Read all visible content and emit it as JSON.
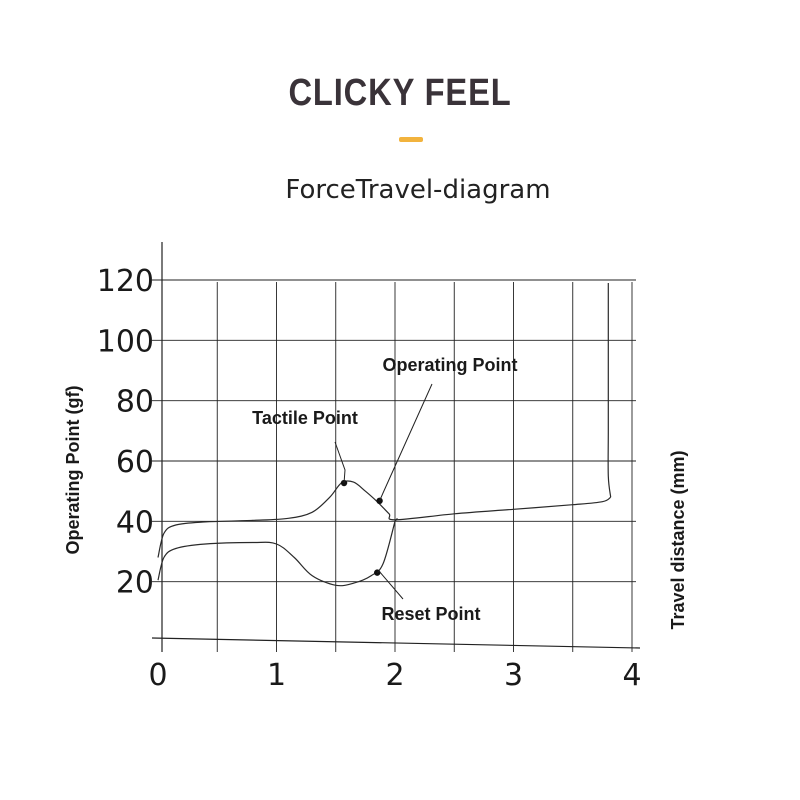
{
  "header": {
    "title": "CLICKY FEEL",
    "accent_color": "#f2b33d"
  },
  "chart_data": {
    "type": "line",
    "title": "ForceTravel-diagram",
    "ylabel": "Operating Point  (gf)",
    "xlabel": "Travel distance  (mm)",
    "xlim": [
      0,
      4
    ],
    "ylim": [
      0,
      120
    ],
    "x_ticks": [
      "0",
      "1",
      "2",
      "3",
      "4"
    ],
    "y_ticks": [
      "20",
      "40",
      "60",
      "80",
      "100",
      "120"
    ],
    "grid": true,
    "series": [
      {
        "points": [
          [
            0,
            28
          ],
          [
            0.05,
            36
          ],
          [
            0.15,
            38.8
          ],
          [
            0.4,
            39.8
          ],
          [
            0.8,
            40.3
          ],
          [
            1.1,
            41
          ],
          [
            1.3,
            43
          ],
          [
            1.45,
            48
          ],
          [
            1.55,
            52.8
          ],
          [
            1.65,
            53
          ],
          [
            1.75,
            50
          ],
          [
            1.85,
            46.5
          ],
          [
            1.95,
            42.5
          ],
          [
            2.0,
            40.5
          ],
          [
            2.5,
            42.5
          ],
          [
            3.0,
            44
          ],
          [
            3.5,
            45.5
          ],
          [
            3.75,
            46.5
          ],
          [
            3.82,
            48
          ]
        ]
      },
      {
        "points": [
          [
            0,
            20.5
          ],
          [
            0.05,
            28
          ],
          [
            0.15,
            31
          ],
          [
            0.4,
            32.5
          ],
          [
            0.8,
            33
          ],
          [
            1.0,
            32.5
          ],
          [
            1.15,
            28
          ],
          [
            1.3,
            22
          ],
          [
            1.5,
            18.8
          ],
          [
            1.65,
            19.5
          ],
          [
            1.8,
            22
          ],
          [
            1.9,
            26
          ],
          [
            2.0,
            40
          ]
        ]
      },
      {
        "points": [
          [
            3.82,
            48
          ],
          [
            3.8,
            55
          ],
          [
            3.8,
            70
          ],
          [
            3.8,
            90
          ],
          [
            3.8,
            110
          ],
          [
            3.8,
            119
          ]
        ]
      }
    ],
    "annotations": [
      {
        "text": "Tactile Point",
        "x": 1.57,
        "y": 52.7
      },
      {
        "text": "Operating Point",
        "x": 1.87,
        "y": 46.8
      },
      {
        "text": "Reset Point",
        "x": 1.85,
        "y": 23
      }
    ],
    "line_color": "#2a2a2a",
    "grid_color": "#222222"
  }
}
